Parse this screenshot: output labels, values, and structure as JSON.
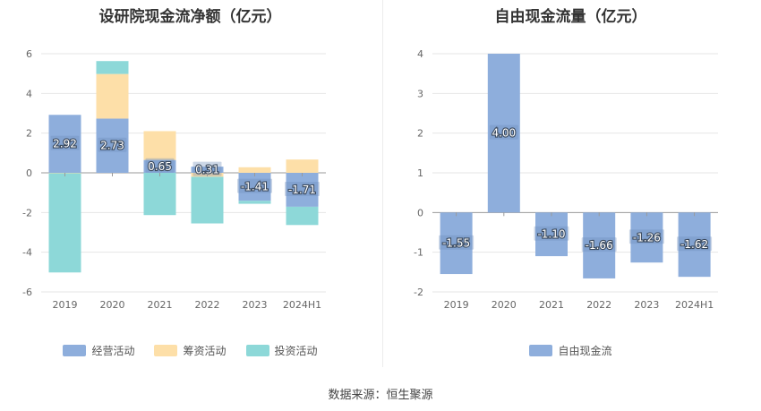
{
  "source_text": "数据来源：恒生聚源",
  "chart_data": [
    {
      "type": "bar",
      "stacked": true,
      "title": "设研院现金流净额（亿元）",
      "categories": [
        "2019",
        "2020",
        "2021",
        "2022",
        "2023",
        "2024H1"
      ],
      "ylim": [
        -6,
        6
      ],
      "yticks": [
        -6,
        -4,
        -2,
        0,
        2,
        4,
        6
      ],
      "grid": true,
      "legend_position": "bottom",
      "series": [
        {
          "name": "经营活动",
          "color": "#8eaedc",
          "values": [
            2.92,
            2.73,
            0.65,
            0.31,
            -1.41,
            -1.71
          ]
        },
        {
          "name": "筹资活动",
          "color": "#fddfa8",
          "values": [
            -0.02,
            2.25,
            1.45,
            -0.2,
            0.28,
            0.67
          ]
        },
        {
          "name": "投资活动",
          "color": "#8dd8d8",
          "values": [
            -5.0,
            0.65,
            -2.13,
            -2.35,
            -0.15,
            -0.92
          ]
        }
      ],
      "data_labels": [
        "2.92",
        "2.73",
        "0.65",
        "0.31",
        "-1.41",
        "-1.71"
      ]
    },
    {
      "type": "bar",
      "title": "自由现金流量（亿元）",
      "categories": [
        "2019",
        "2020",
        "2021",
        "2022",
        "2023",
        "2024H1"
      ],
      "ylim": [
        -2,
        4
      ],
      "yticks": [
        -2,
        -1,
        0,
        1,
        2,
        3,
        4
      ],
      "grid": true,
      "legend_position": "bottom",
      "series": [
        {
          "name": "自由现金流",
          "color": "#8eaedc",
          "values": [
            -1.55,
            4.0,
            -1.1,
            -1.66,
            -1.26,
            -1.62
          ]
        }
      ],
      "data_labels": [
        "-1.55",
        "4.00",
        "-1.10",
        "-1.66",
        "-1.26",
        "-1.62"
      ]
    }
  ]
}
